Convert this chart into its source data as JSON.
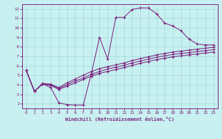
{
  "xlabel": "Windchill (Refroidissement éolien,°C)",
  "background_color": "#c8f0f0",
  "line_color": "#7b2080",
  "grid_color": "#a0d8d8",
  "spine_color": "#7b2080",
  "xlim": [
    -0.5,
    23.5
  ],
  "ylim": [
    1.5,
    12.5
  ],
  "xticks": [
    0,
    1,
    2,
    3,
    4,
    5,
    6,
    7,
    8,
    9,
    10,
    11,
    12,
    13,
    14,
    15,
    16,
    17,
    18,
    19,
    20,
    21,
    22,
    23
  ],
  "yticks": [
    2,
    3,
    4,
    5,
    6,
    7,
    8,
    9,
    10,
    11,
    12
  ],
  "curve1_x": [
    0,
    1,
    2,
    3,
    4,
    5,
    6,
    7,
    8,
    9,
    10,
    11,
    12,
    13,
    14,
    15,
    16,
    17,
    18,
    19,
    20,
    21,
    22,
    23
  ],
  "curve1_y": [
    5.5,
    3.3,
    4.1,
    3.7,
    2.1,
    1.9,
    1.85,
    1.85,
    5.2,
    9.0,
    6.7,
    11.1,
    11.1,
    11.95,
    12.1,
    12.1,
    11.5,
    10.5,
    10.2,
    9.7,
    8.8,
    8.3,
    8.2,
    8.2
  ],
  "curve2_x": [
    0,
    1,
    2,
    3,
    4,
    5,
    6,
    7,
    8,
    9,
    10,
    11,
    12,
    13,
    14,
    15,
    16,
    17,
    18,
    19,
    20,
    21,
    22,
    23
  ],
  "curve2_y": [
    5.5,
    3.3,
    4.15,
    4.05,
    3.7,
    4.2,
    4.6,
    5.0,
    5.4,
    5.7,
    5.9,
    6.1,
    6.3,
    6.55,
    6.75,
    6.95,
    7.15,
    7.3,
    7.45,
    7.55,
    7.65,
    7.75,
    7.85,
    7.95
  ],
  "curve3_x": [
    0,
    1,
    2,
    3,
    4,
    5,
    6,
    7,
    8,
    9,
    10,
    11,
    12,
    13,
    14,
    15,
    16,
    17,
    18,
    19,
    20,
    21,
    22,
    23
  ],
  "curve3_y": [
    5.5,
    3.3,
    4.1,
    4.0,
    3.6,
    4.0,
    4.4,
    4.7,
    5.1,
    5.4,
    5.65,
    5.85,
    6.05,
    6.3,
    6.5,
    6.7,
    6.9,
    7.05,
    7.2,
    7.3,
    7.4,
    7.5,
    7.6,
    7.7
  ],
  "curve4_x": [
    0,
    1,
    2,
    3,
    4,
    5,
    6,
    7,
    8,
    9,
    10,
    11,
    12,
    13,
    14,
    15,
    16,
    17,
    18,
    19,
    20,
    21,
    22,
    23
  ],
  "curve4_y": [
    5.5,
    3.3,
    4.05,
    3.95,
    3.5,
    3.85,
    4.2,
    4.55,
    4.9,
    5.2,
    5.4,
    5.6,
    5.8,
    6.05,
    6.25,
    6.45,
    6.65,
    6.8,
    6.95,
    7.05,
    7.15,
    7.25,
    7.35,
    7.45
  ]
}
